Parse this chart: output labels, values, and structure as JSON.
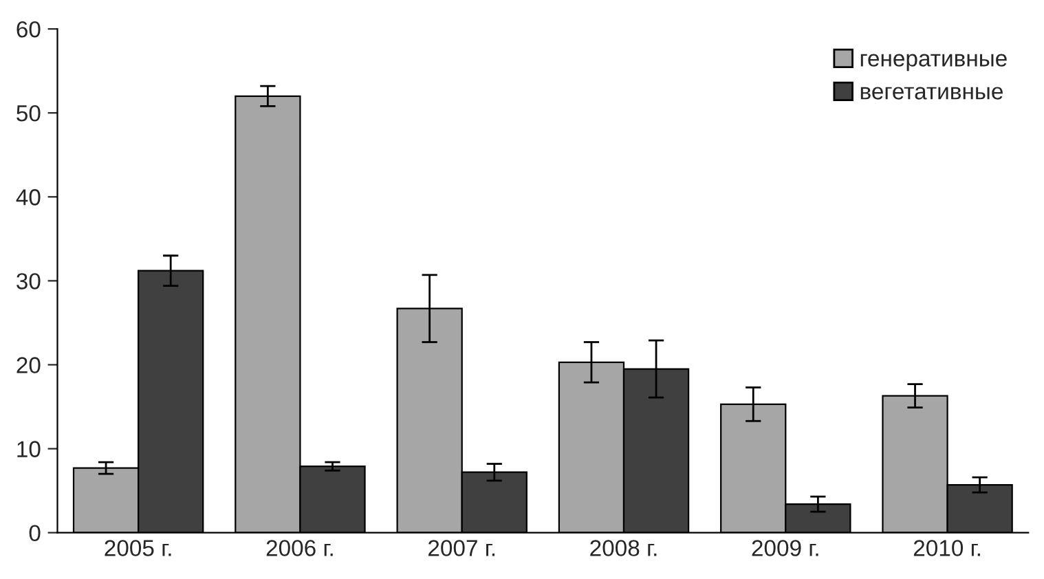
{
  "chart_data": {
    "type": "bar",
    "categories": [
      "2005 г.",
      "2006 г.",
      "2007 г.",
      "2008 г.",
      "2009 г.",
      "2010 г."
    ],
    "series": [
      {
        "name": "генеративные",
        "color": "#a6a6a6",
        "values": [
          7.7,
          52.0,
          26.7,
          20.3,
          15.3,
          16.3
        ],
        "errors": [
          0.7,
          1.2,
          4.0,
          2.4,
          2.0,
          1.4
        ]
      },
      {
        "name": "вегетативные",
        "color": "#404040",
        "values": [
          31.2,
          7.9,
          7.2,
          19.5,
          3.4,
          5.7
        ],
        "errors": [
          1.8,
          0.5,
          1.0,
          3.4,
          0.9,
          0.9
        ]
      }
    ],
    "ylim": [
      0,
      60
    ],
    "yticks": [
      0,
      10,
      20,
      30,
      40,
      50,
      60
    ],
    "grid": false,
    "legend": "top right"
  }
}
